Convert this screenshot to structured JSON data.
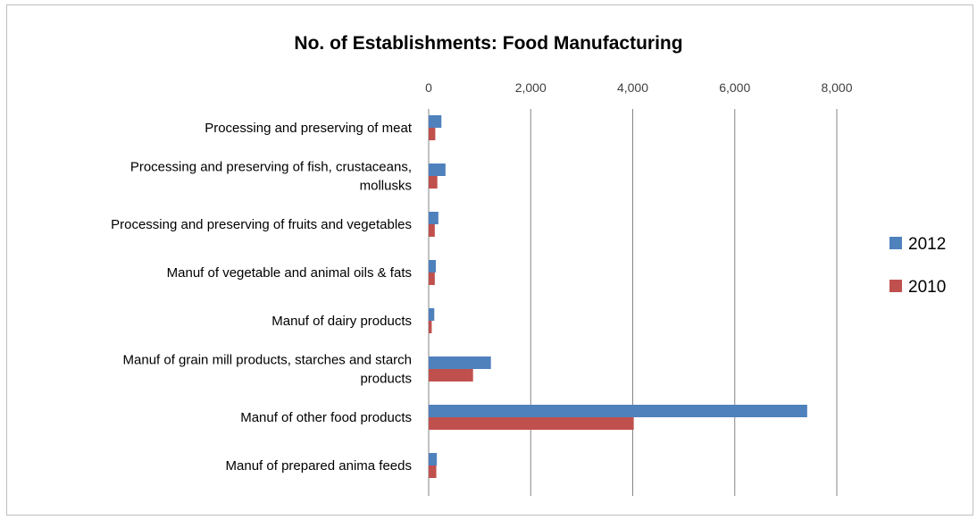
{
  "chart_data": {
    "type": "bar",
    "orientation": "horizontal",
    "title": "No. of Establishments: Food Manufacturing",
    "xlabel": "",
    "ylabel": "",
    "xlim": [
      0,
      8000
    ],
    "x_ticks": [
      "0",
      "2,000",
      "4,000",
      "6,000",
      "8,000"
    ],
    "grid": true,
    "legend_position": "right",
    "categories": [
      "Processing and preserving of meat",
      "Processing and preserving of fish, crustaceans, mollusks",
      "Processing and preserving of fruits and vegetables",
      "Manuf of vegetable and animal oils & fats",
      "Manuf of dairy products",
      "Manuf of grain mill products, starches and starch products",
      "Manuf of other food products",
      "Manuf of prepared anima feeds"
    ],
    "category_lines": [
      [
        "Processing and preserving of meat"
      ],
      [
        "Processing and preserving of fish, crustaceans,",
        "mollusks"
      ],
      [
        "Processing and preserving of fruits and vegetables"
      ],
      [
        "Manuf of vegetable and animal oils & fats"
      ],
      [
        "Manuf of dairy products"
      ],
      [
        "Manuf of grain mill products, starches and starch",
        "products"
      ],
      [
        "Manuf of other food products"
      ],
      [
        "Manuf of prepared anima feeds"
      ]
    ],
    "series": [
      {
        "name": "2012",
        "color": "#4f81bd",
        "values": [
          250,
          330,
          190,
          140,
          110,
          1220,
          7420,
          160
        ]
      },
      {
        "name": "2010",
        "color": "#c0504d",
        "values": [
          130,
          170,
          120,
          120,
          60,
          870,
          4020,
          150
        ]
      }
    ]
  }
}
